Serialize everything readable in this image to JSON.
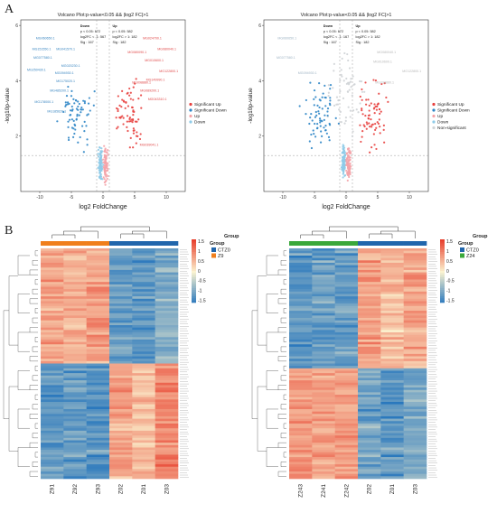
{
  "figure": {
    "panel_a_label": "A",
    "panel_b_label": "B"
  },
  "chart_data": [
    {
      "type": "scatter",
      "title": "Volcano Plot:p-value<0.05 && |log2 FC|>1",
      "xlabel": "log2 FoldChange",
      "ylabel": "-log10p-value",
      "xlim": [
        -13,
        13
      ],
      "ylim": [
        0,
        6.2
      ],
      "x_ticks": [
        -10,
        -5,
        0,
        5,
        10
      ],
      "y_ticks": [
        2,
        4,
        6
      ],
      "thresholds": {
        "x": [
          -1,
          1
        ],
        "y": 1.3
      },
      "stats": {
        "down": [
          "Down",
          "p < 0.05: 672",
          "log2FC < -1: 567",
          "Sig : 167"
        ],
        "up": [
          "Up",
          "p < 0.05: 582",
          "log2FC > 1: 182",
          "Sig : 182"
        ]
      },
      "legend": [
        "Significant Up",
        "Significant Down",
        "Up",
        "Down"
      ],
      "legend_position": "right",
      "colors": {
        "sig_up": "#e8413f",
        "sig_down": "#2f86c6",
        "up": "#f4a3a8",
        "down": "#8fcbe8"
      },
      "labels_down": [
        {
          "text": "MG060650.1",
          "x": -10.6,
          "y": 5.5
        },
        {
          "text": "MG151550.1",
          "x": -11.2,
          "y": 5.1
        },
        {
          "text": "MG041570.1",
          "x": -7.4,
          "y": 5.1
        },
        {
          "text": "MG077580.1",
          "x": -11.0,
          "y": 4.8
        },
        {
          "text": "MG020230.1",
          "x": -6.6,
          "y": 4.5
        },
        {
          "text": "MG250430.1",
          "x": -12.0,
          "y": 4.35
        },
        {
          "text": "MG094930.1",
          "x": -7.6,
          "y": 4.25
        },
        {
          "text": "MG175020.1",
          "x": -7.4,
          "y": 3.95
        },
        {
          "text": "MG485200.1",
          "x": -8.4,
          "y": 3.6
        },
        {
          "text": "MG178000.1",
          "x": -10.8,
          "y": 3.2
        },
        {
          "text": "MG185620.1",
          "x": -8.8,
          "y": 2.85
        }
      ],
      "labels_up": [
        {
          "text": "MG024700.1",
          "x": 6.3,
          "y": 5.5
        },
        {
          "text": "MG080090.1",
          "x": 3.9,
          "y": 5.0
        },
        {
          "text": "MG080040.1",
          "x": 8.6,
          "y": 5.1
        },
        {
          "text": "MG010600.1",
          "x": 6.6,
          "y": 4.7
        },
        {
          "text": "MG122800.1",
          "x": 8.9,
          "y": 4.3
        },
        {
          "text": "MG149990.1",
          "x": 6.8,
          "y": 4.0
        },
        {
          "text": "MG098880.1",
          "x": 4.6,
          "y": 3.9
        },
        {
          "text": "MG089200.1",
          "x": 5.9,
          "y": 3.6
        },
        {
          "text": "MG043310.1",
          "x": 7.1,
          "y": 3.3
        },
        {
          "text": "MG039041.1",
          "x": 5.8,
          "y": 1.65
        }
      ]
    },
    {
      "type": "scatter",
      "title": "Volcano Plot:p-value<0.05 && |log2 FC|>1",
      "xlabel": "log2 FoldChange",
      "ylabel": "-log10p-value",
      "xlim": [
        -13,
        13
      ],
      "ylim": [
        0,
        6.2
      ],
      "x_ticks": [
        -10,
        -5,
        0,
        5,
        10
      ],
      "y_ticks": [
        2,
        4,
        6
      ],
      "thresholds": {
        "x": [
          -1,
          1
        ],
        "y": 1.3
      },
      "stats": {
        "down": [
          "Down",
          "p < 0.05: 672",
          "log2FC < -1: 167",
          "Sig : 167"
        ],
        "up": [
          "Up",
          "p < 0.05: 582",
          "log2FC > 1: 182",
          "Sig : 182"
        ]
      },
      "legend": [
        "Significant Up",
        "Significant Down",
        "Up",
        "Down",
        "Non-significant"
      ],
      "legend_position": "right",
      "colors": {
        "sig_up": "#e8413f",
        "sig_down": "#2f86c6",
        "up": "#f4a3a8",
        "down": "#8fcbe8",
        "ns": "#cfd3d6"
      },
      "labels_down": [
        {
          "text": "MG060650.1",
          "x": -10.8,
          "y": 5.5
        },
        {
          "text": "MG077580.1",
          "x": -11.0,
          "y": 4.8
        },
        {
          "text": "MG094930.1",
          "x": -7.6,
          "y": 4.25
        }
      ],
      "labels_up": [
        {
          "text": "MG080040.1",
          "x": 4.9,
          "y": 5.0
        },
        {
          "text": "MG010600.1",
          "x": 4.3,
          "y": 4.65
        },
        {
          "text": "MG122800.1",
          "x": 8.9,
          "y": 4.3
        },
        {
          "text": "MG098880.1",
          "x": 4.6,
          "y": 3.9
        }
      ]
    },
    {
      "type": "heatmap",
      "columns": [
        "Z91",
        "Z92",
        "Z93",
        "Z02",
        "Z01",
        "Z03"
      ],
      "groups": [
        {
          "name": "CTZ0",
          "color": "#2166ac",
          "columns": [
            "Z02",
            "Z01",
            "Z03"
          ]
        },
        {
          "name": "Z9",
          "color": "#f07f1c",
          "columns": [
            "Z91",
            "Z92",
            "Z93"
          ]
        }
      ],
      "legend_title": "Group",
      "colorbar": {
        "ticks": [
          1.5,
          1,
          0.5,
          0,
          -0.5,
          -1,
          -1.5
        ],
        "low": "#2a78bd",
        "mid": "#fbf3d0",
        "high": "#e8402e"
      },
      "row_clusters": [
        {
          "fraction": 0.5,
          "values": [
            0.7,
            0.6,
            0.75,
            -1.1,
            -1.2,
            -0.9
          ]
        },
        {
          "fraction": 0.5,
          "values": [
            -1.2,
            -1.1,
            -1.2,
            0.7,
            0.5,
            0.9
          ]
        }
      ]
    },
    {
      "type": "heatmap",
      "columns": [
        "Z243",
        "Z241",
        "Z242",
        "Z02",
        "Z01",
        "Z03"
      ],
      "groups": [
        {
          "name": "CTZ0",
          "color": "#2166ac",
          "columns": [
            "Z02",
            "Z01",
            "Z03"
          ]
        },
        {
          "name": "Z24",
          "color": "#3aa83a",
          "columns": [
            "Z243",
            "Z241",
            "Z242"
          ]
        }
      ],
      "legend_title": "Group",
      "colorbar": {
        "ticks": [
          1.5,
          1,
          0.5,
          0,
          -0.5,
          -1,
          -1.5
        ],
        "low": "#2a78bd",
        "mid": "#fbf3d0",
        "high": "#e8402e"
      },
      "row_clusters": [
        {
          "fraction": 0.52,
          "values": [
            -1.2,
            -1.1,
            -1.1,
            0.8,
            0.5,
            0.7
          ]
        },
        {
          "fraction": 0.48,
          "values": [
            0.8,
            0.7,
            0.75,
            -1.0,
            -1.2,
            -1.0
          ]
        }
      ]
    }
  ]
}
